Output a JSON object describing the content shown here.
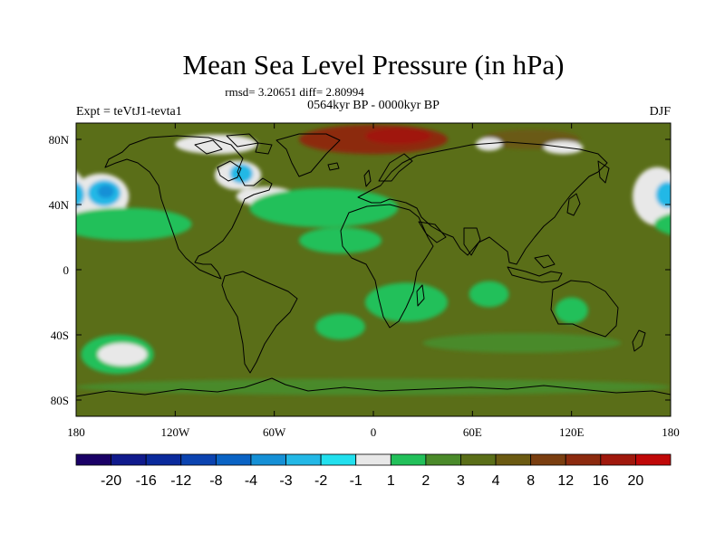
{
  "chart_data": {
    "type": "heatmap",
    "title": "Mean Sea Level Pressure (in hPa)",
    "stats": "rmsd= 3.20651 diff= 2.80994",
    "period": "0564kyr BP - 0000kyr BP",
    "experiment": "Expt = teVtJ1-tevta1",
    "season": "DJF",
    "projection": "cylindrical equidistant (lon 180W to 180E, lat 90S to 90N)",
    "xlabel": "",
    "ylabel": "",
    "xlim": [
      -180,
      180
    ],
    "ylim": [
      -90,
      90
    ],
    "x_ticks": [
      {
        "value": -180,
        "label": "180"
      },
      {
        "value": -120,
        "label": "120W"
      },
      {
        "value": -60,
        "label": "60W"
      },
      {
        "value": 0,
        "label": "0"
      },
      {
        "value": 60,
        "label": "60E"
      },
      {
        "value": 120,
        "label": "120E"
      },
      {
        "value": 180,
        "label": "180"
      }
    ],
    "y_ticks": [
      {
        "value": 80,
        "label": "80N"
      },
      {
        "value": 40,
        "label": "40N"
      },
      {
        "value": 0,
        "label": "0"
      },
      {
        "value": -40,
        "label": "40S"
      },
      {
        "value": -80,
        "label": "80S"
      }
    ],
    "colorbar": {
      "units": "hPa",
      "bounds": [
        "-20",
        "-16",
        "-12",
        "-8",
        "-4",
        "-3",
        "-2",
        "-1",
        "1",
        "2",
        "3",
        "4",
        "8",
        "12",
        "16",
        "20"
      ],
      "colors": [
        "#1a0066",
        "#101a8c",
        "#0a2a9c",
        "#0b43b0",
        "#0a63c4",
        "#1590d6",
        "#23b8e6",
        "#22e0ee",
        "#e8e8e8",
        "#22c05a",
        "#4a8a2a",
        "#5a6e18",
        "#6b5a12",
        "#7a3e10",
        "#8c2a0e",
        "#a0180c",
        "#c00808"
      ]
    },
    "background_bin": 11,
    "regions": [
      {
        "name": "Arctic high (Greenland/Barents)",
        "lon": 0,
        "lat": 80,
        "rx": 45,
        "ry": 9,
        "bin": 14
      },
      {
        "name": "Arctic high core",
        "lon": 15,
        "lat": 82,
        "rx": 20,
        "ry": 5,
        "bin": 15
      },
      {
        "name": "Siberia Arctic",
        "lon": 95,
        "lat": 80,
        "rx": 30,
        "ry": 6,
        "bin": 12
      },
      {
        "name": "Siberia near-zero",
        "lon": 70,
        "lat": 77,
        "rx": 8,
        "ry": 4,
        "bin": 8
      },
      {
        "name": "Siberia near-zero east",
        "lon": 115,
        "lat": 75,
        "rx": 12,
        "ry": 4,
        "bin": 8
      },
      {
        "name": "Canada archipelago",
        "lon": -95,
        "lat": 77,
        "rx": 25,
        "ry": 6,
        "bin": 8
      },
      {
        "name": "North Pacific low ring",
        "lon": -165,
        "lat": 45,
        "rx": 17,
        "ry": 14,
        "bin": 8
      },
      {
        "name": "North Pacific low",
        "lon": -163,
        "lat": 47,
        "rx": 10,
        "ry": 8,
        "bin": 6
      },
      {
        "name": "North Pacific low core",
        "lon": -162,
        "lat": 48,
        "rx": 5,
        "ry": 4,
        "bin": 5
      },
      {
        "name": "Hudson Bay low ring",
        "lon": -82,
        "lat": 58,
        "rx": 14,
        "ry": 9,
        "bin": 8
      },
      {
        "name": "Hudson Bay low",
        "lon": -80,
        "lat": 59,
        "rx": 7,
        "ry": 6,
        "bin": 6
      },
      {
        "name": "Eastern North America",
        "lon": -65,
        "lat": 45,
        "rx": 18,
        "ry": 6,
        "bin": 8
      },
      {
        "name": "North Atlantic",
        "lon": -40,
        "lat": 42,
        "rx": 20,
        "ry": 6,
        "bin": 8
      },
      {
        "name": "North Atlantic band",
        "lon": -30,
        "lat": 38,
        "rx": 45,
        "ry": 12,
        "bin": 9
      },
      {
        "name": "West Pacific low ring",
        "lon": 172,
        "lat": 45,
        "rx": 15,
        "ry": 18,
        "bin": 8
      },
      {
        "name": "West Pacific low",
        "lon": 178,
        "lat": 46,
        "rx": 7,
        "ry": 8,
        "bin": 6
      },
      {
        "name": "North Pacific band",
        "lon": -150,
        "lat": 28,
        "rx": 40,
        "ry": 10,
        "bin": 9
      },
      {
        "name": "Tropical Atlantic",
        "lon": -20,
        "lat": 18,
        "rx": 25,
        "ry": 8,
        "bin": 9
      },
      {
        "name": "Southern Africa",
        "lon": 20,
        "lat": -20,
        "rx": 25,
        "ry": 12,
        "bin": 9
      },
      {
        "name": "Indian Ocean",
        "lon": 70,
        "lat": -15,
        "rx": 12,
        "ry": 8,
        "bin": 9
      },
      {
        "name": "Western Australia",
        "lon": 120,
        "lat": -25,
        "rx": 10,
        "ry": 8,
        "bin": 9
      },
      {
        "name": "Southern Ocean band",
        "lon": 90,
        "lat": -45,
        "rx": 60,
        "ry": 6,
        "bin": 10
      },
      {
        "name": "South Pacific high ring",
        "lon": -155,
        "lat": -52,
        "rx": 22,
        "ry": 12,
        "bin": 9
      },
      {
        "name": "South Pacific anomaly",
        "lon": -152,
        "lat": -52,
        "rx": 15,
        "ry": 7,
        "bin": 8
      },
      {
        "name": "South Atlantic",
        "lon": -20,
        "lat": -35,
        "rx": 15,
        "ry": 8,
        "bin": 9
      },
      {
        "name": "Antarctic coast",
        "lon": 0,
        "lat": -72,
        "rx": 180,
        "ry": 5,
        "bin": 10
      }
    ]
  }
}
